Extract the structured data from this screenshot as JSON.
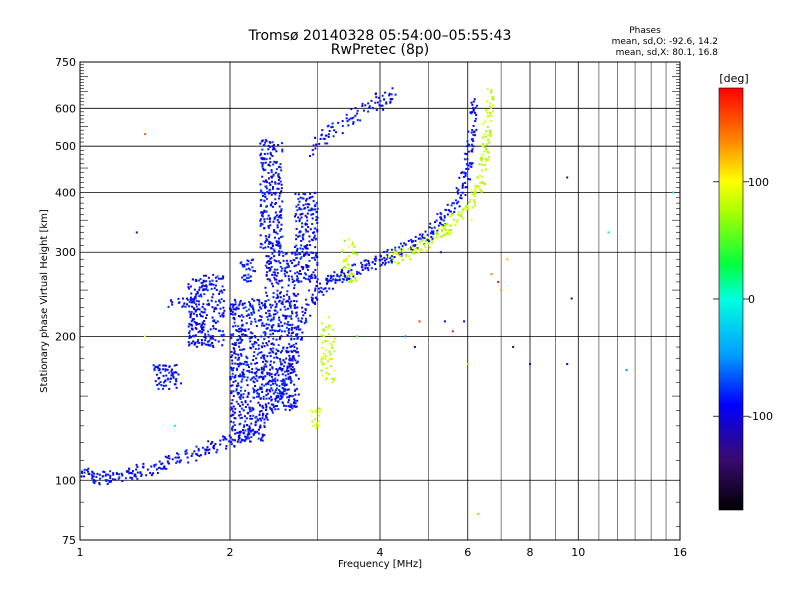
{
  "chart_data": {
    "type": "scatter",
    "title": "Tromsø 20140328 05:54:00–05:55:43",
    "subtitle": "RwPretec (8p)",
    "xlabel": "Frequency [MHz]",
    "ylabel": "Stationary phase Virtual Height [km]",
    "x_scale": "log",
    "y_scale": "log",
    "xlim": [
      1,
      16
    ],
    "ylim": [
      75,
      750
    ],
    "x_major_ticks": [
      1,
      2,
      4,
      6,
      8,
      10,
      16
    ],
    "x_minor_ticks": [
      3,
      5,
      7,
      9,
      11,
      12,
      13,
      14,
      15
    ],
    "y_ticks": [
      75,
      100,
      200,
      300,
      400,
      500,
      600,
      750
    ],
    "grid": true,
    "phases_box": {
      "title": "Phases",
      "line_o": "mean, sd,O: -92.6, 14.2",
      "line_x": "mean, sd,X: 80.1, 16.8"
    },
    "colorbar": {
      "label": "[deg]",
      "range": [
        -180,
        180
      ],
      "ticks": [
        "100",
        "0",
        "-100"
      ],
      "tick_values": [
        100,
        0,
        -100
      ]
    },
    "series": [
      {
        "mode": "O",
        "phase": -100,
        "trace": [
          [
            1.0,
            103
          ],
          [
            1.1,
            101
          ],
          [
            1.2,
            102
          ],
          [
            1.3,
            104
          ],
          [
            1.45,
            107
          ],
          [
            1.6,
            111
          ],
          [
            1.8,
            116
          ],
          [
            2.0,
            121
          ],
          [
            2.2,
            127
          ],
          [
            2.4,
            138
          ],
          [
            2.6,
            160
          ],
          [
            2.75,
            200
          ],
          [
            2.9,
            240
          ],
          [
            3.1,
            255
          ],
          [
            3.3,
            265
          ],
          [
            3.6,
            275
          ],
          [
            3.9,
            285
          ],
          [
            4.2,
            295
          ],
          [
            4.6,
            310
          ],
          [
            5.0,
            330
          ],
          [
            5.4,
            355
          ],
          [
            5.8,
            400
          ],
          [
            6.0,
            450
          ],
          [
            6.1,
            520
          ],
          [
            6.2,
            610
          ]
        ],
        "cloud": [
          {
            "x": [
              2.35,
              2.75
            ],
            "y": [
              140,
              300
            ]
          },
          {
            "x": [
              2.3,
              2.55
            ],
            "y": [
              300,
              520
            ]
          },
          {
            "x": [
              2.0,
              2.35
            ],
            "y": [
              120,
              240
            ]
          },
          {
            "x": [
              1.65,
              1.95
            ],
            "y": [
              190,
              270
            ]
          },
          {
            "x": [
              1.4,
              1.6
            ],
            "y": [
              155,
              175
            ]
          },
          {
            "x": [
              1.5,
              1.7
            ],
            "y": [
              230,
              240
            ]
          },
          {
            "x": [
              2.1,
              2.25
            ],
            "y": [
              260,
              290
            ]
          },
          {
            "x": [
              2.7,
              3.0
            ],
            "y": [
              260,
              400
            ]
          }
        ],
        "top_trace": [
          [
            2.9,
            480
          ],
          [
            3.1,
            530
          ],
          [
            3.4,
            560
          ],
          [
            3.7,
            590
          ],
          [
            4.0,
            620
          ],
          [
            4.3,
            640
          ]
        ]
      },
      {
        "mode": "X",
        "phase": 80,
        "trace": [
          [
            4.2,
            290
          ],
          [
            4.6,
            300
          ],
          [
            5.0,
            315
          ],
          [
            5.4,
            335
          ],
          [
            5.8,
            360
          ],
          [
            6.2,
            390
          ],
          [
            6.4,
            430
          ],
          [
            6.5,
            500
          ],
          [
            6.6,
            570
          ],
          [
            6.7,
            650
          ]
        ],
        "cloud": [
          {
            "x": [
              3.05,
              3.25
            ],
            "y": [
              160,
              220
            ]
          },
          {
            "x": [
              3.35,
              3.6
            ],
            "y": [
              260,
              320
            ]
          },
          {
            "x": [
              2.9,
              3.05
            ],
            "y": [
              128,
              142
            ]
          }
        ]
      },
      {
        "mode": "scattered",
        "points": [
          [
            1.35,
            530,
            150
          ],
          [
            1.3,
            330,
            -120
          ],
          [
            1.35,
            200,
            90
          ],
          [
            1.55,
            130,
            -10
          ],
          [
            3.6,
            200,
            40
          ],
          [
            4.5,
            200,
            -60
          ],
          [
            4.7,
            190,
            -120
          ],
          [
            4.8,
            215,
            160
          ],
          [
            5.1,
            320,
            -90
          ],
          [
            5.3,
            300,
            -130
          ],
          [
            5.4,
            215,
            -110
          ],
          [
            5.6,
            205,
            170
          ],
          [
            5.9,
            215,
            -100
          ],
          [
            6.1,
            350,
            100
          ],
          [
            6.7,
            270,
            140
          ],
          [
            6.9,
            260,
            170
          ],
          [
            7.0,
            250,
            130
          ],
          [
            7.2,
            290,
            120
          ],
          [
            7.4,
            190,
            -120
          ],
          [
            8.0,
            175,
            -120
          ],
          [
            9.5,
            175,
            -100
          ],
          [
            9.5,
            430,
            -140
          ],
          [
            9.7,
            240,
            -150
          ],
          [
            11.5,
            330,
            -10
          ],
          [
            12.5,
            170,
            -60
          ],
          [
            15.5,
            400,
            -10
          ],
          [
            6.3,
            85,
            60
          ],
          [
            6.0,
            175,
            120
          ]
        ]
      }
    ]
  }
}
